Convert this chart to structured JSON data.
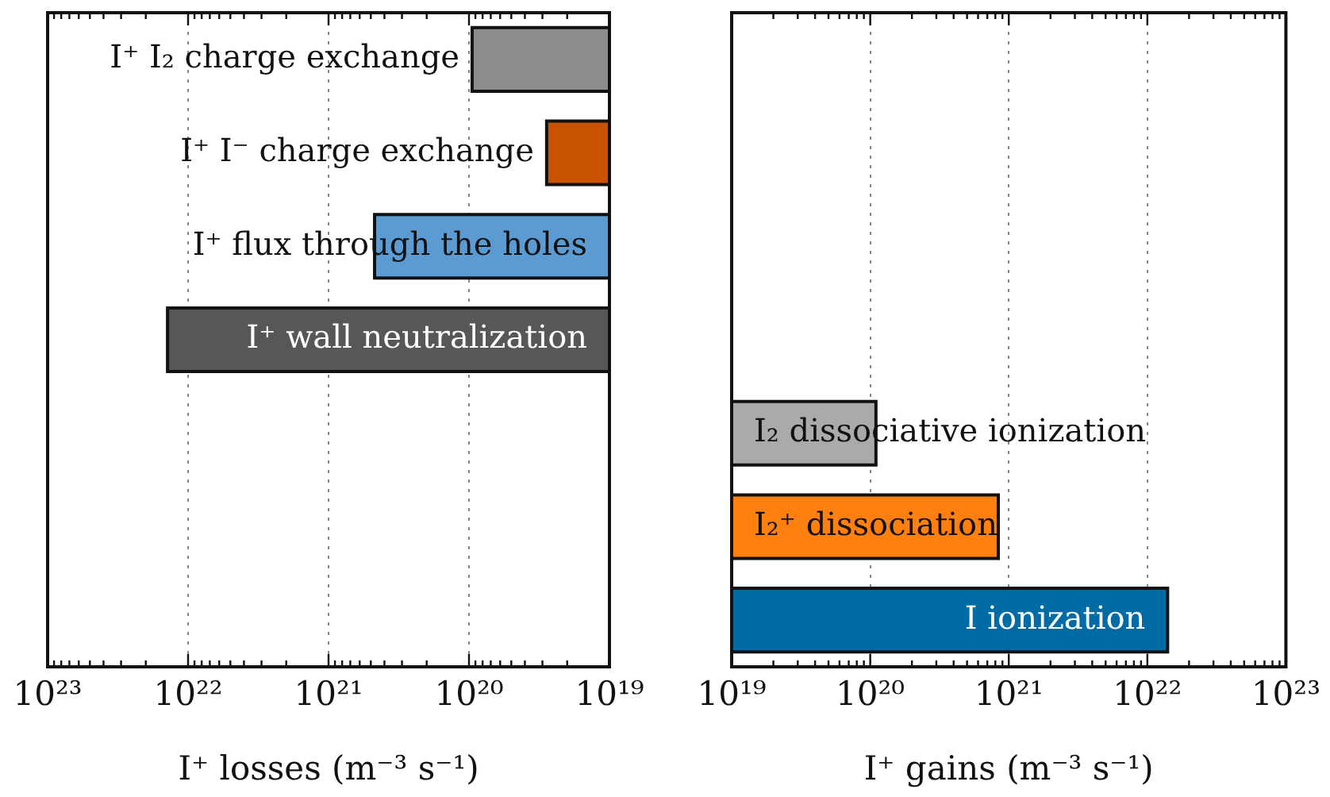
{
  "chart_data": [
    {
      "type": "bar",
      "orientation": "horizontal",
      "log": "x",
      "xlabel": "I⁺ losses (m⁻³ s⁻¹)",
      "categories": [
        "I⁺ I₂ charge exchange",
        "I⁺ I⁻ charge exchange",
        "I⁺ flux through the holes",
        "I⁺ wall neutralization",
        null,
        null,
        null
      ],
      "values": [
        9.5e+19,
        2.8e+19,
        4.7e+20,
        1.4e+22,
        null,
        null,
        null
      ],
      "colors": [
        "#8c8c8c",
        "#c85200",
        "#5b9bd2",
        "#575757",
        null,
        null,
        null
      ],
      "xlim": [
        1e+23,
        1e+19
      ],
      "xticks": [
        {
          "value": 1e+19,
          "label": "10¹⁹"
        },
        {
          "value": 2e+19,
          "label": null
        },
        {
          "value": 3e+19,
          "label": null
        },
        {
          "value": 4e+19,
          "label": null
        },
        {
          "value": 5e+19,
          "label": null
        },
        {
          "value": 6e+19,
          "label": null
        },
        {
          "value": 7e+19,
          "label": null
        },
        {
          "value": 8e+19,
          "label": null
        },
        {
          "value": 9e+19,
          "label": null
        },
        {
          "value": 1e+20,
          "label": "10²⁰"
        },
        {
          "value": 2e+20,
          "label": null
        },
        {
          "value": 3e+20,
          "label": null
        },
        {
          "value": 4e+20,
          "label": null
        },
        {
          "value": 5e+20,
          "label": null
        },
        {
          "value": 6e+20,
          "label": null
        },
        {
          "value": 7e+20,
          "label": null
        },
        {
          "value": 8e+20,
          "label": null
        },
        {
          "value": 9e+20,
          "label": null
        },
        {
          "value": 1e+21,
          "label": "10²¹"
        },
        {
          "value": 2e+21,
          "label": null
        },
        {
          "value": 3e+21,
          "label": null
        },
        {
          "value": 4e+21,
          "label": null
        },
        {
          "value": 5e+21,
          "label": null
        },
        {
          "value": 6e+21,
          "label": null
        },
        {
          "value": 7e+21,
          "label": null
        },
        {
          "value": 8e+21,
          "label": null
        },
        {
          "value": 9e+21,
          "label": null
        },
        {
          "value": 1e+22,
          "label": "10²²"
        },
        {
          "value": 2e+22,
          "label": null
        },
        {
          "value": 3e+22,
          "label": null
        },
        {
          "value": 4e+22,
          "label": null
        },
        {
          "value": 5e+22,
          "label": null
        },
        {
          "value": 6e+22,
          "label": null
        },
        {
          "value": 7e+22,
          "label": null
        },
        {
          "value": 8e+22,
          "label": null
        },
        {
          "value": 9e+22,
          "label": null
        },
        {
          "value": 1e+23,
          "label": "10²³"
        }
      ],
      "grid": "x",
      "legend": false,
      "tick_labels": "x"
    },
    {
      "type": "bar",
      "orientation": "horizontal",
      "log": "x",
      "xlabel": "I⁺ gains (m⁻³ s⁻¹)",
      "categories": [
        null,
        null,
        null,
        null,
        "I₂ dissociative ionization",
        "I₂⁺ dissociation",
        "I ionization"
      ],
      "values": [
        null,
        null,
        null,
        null,
        1.1e+20,
        8.4e+20,
        1.4e+22
      ],
      "colors": [
        null,
        null,
        null,
        null,
        "#aaaaaa",
        "#ff800e",
        "#006ba4"
      ],
      "xlim": [
        1e+19,
        1e+23
      ],
      "xticks": [
        {
          "value": 1e+19,
          "label": "10¹⁹"
        },
        {
          "value": 2e+19,
          "label": null
        },
        {
          "value": 3e+19,
          "label": null
        },
        {
          "value": 4e+19,
          "label": null
        },
        {
          "value": 5e+19,
          "label": null
        },
        {
          "value": 6e+19,
          "label": null
        },
        {
          "value": 7e+19,
          "label": null
        },
        {
          "value": 8e+19,
          "label": null
        },
        {
          "value": 9e+19,
          "label": null
        },
        {
          "value": 1e+20,
          "label": "10²⁰"
        },
        {
          "value": 2e+20,
          "label": null
        },
        {
          "value": 3e+20,
          "label": null
        },
        {
          "value": 4e+20,
          "label": null
        },
        {
          "value": 5e+20,
          "label": null
        },
        {
          "value": 6e+20,
          "label": null
        },
        {
          "value": 7e+20,
          "label": null
        },
        {
          "value": 8e+20,
          "label": null
        },
        {
          "value": 9e+20,
          "label": null
        },
        {
          "value": 1e+21,
          "label": "10²¹"
        },
        {
          "value": 2e+21,
          "label": null
        },
        {
          "value": 3e+21,
          "label": null
        },
        {
          "value": 4e+21,
          "label": null
        },
        {
          "value": 5e+21,
          "label": null
        },
        {
          "value": 6e+21,
          "label": null
        },
        {
          "value": 7e+21,
          "label": null
        },
        {
          "value": 8e+21,
          "label": null
        },
        {
          "value": 9e+21,
          "label": null
        },
        {
          "value": 1e+22,
          "label": "10²²"
        },
        {
          "value": 2e+22,
          "label": null
        },
        {
          "value": 3e+22,
          "label": null
        },
        {
          "value": 4e+22,
          "label": null
        },
        {
          "value": 5e+22,
          "label": null
        },
        {
          "value": 6e+22,
          "label": null
        },
        {
          "value": 7e+22,
          "label": null
        },
        {
          "value": 8e+22,
          "label": null
        },
        {
          "value": 9e+22,
          "label": null
        },
        {
          "value": 1e+23,
          "label": "10²³"
        }
      ],
      "grid": "x",
      "legend": false,
      "tick_labels": "x"
    }
  ]
}
